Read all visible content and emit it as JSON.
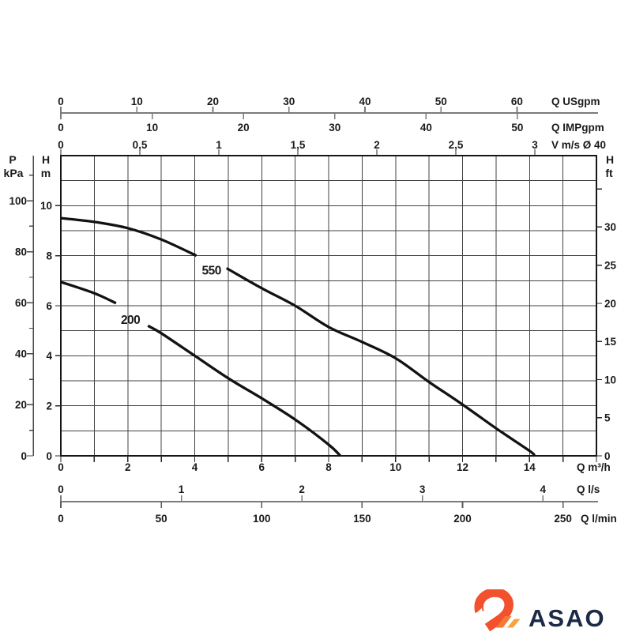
{
  "page": {
    "background": "#ffffff"
  },
  "chart_data": {
    "type": "line",
    "description": "Pump head-flow performance curves",
    "x_axis_base": {
      "unit": "m3/h",
      "range": [
        0,
        16
      ],
      "grid_step": 1
    },
    "y_axis_base": {
      "unit": "m",
      "range": [
        0,
        12
      ],
      "grid_step": 1
    },
    "grid": true,
    "axes_top": [
      {
        "name": "q-usgpm",
        "unit_label": "Q USgpm",
        "m3h_per_unit": 0.22712,
        "tick_values": [
          0,
          10,
          20,
          30,
          40,
          50,
          60
        ],
        "tick_labels": [
          "0",
          "10",
          "20",
          "30",
          "40",
          "50",
          "60"
        ]
      },
      {
        "name": "q-impgpm",
        "unit_label": "Q IMPgpm",
        "m3h_per_unit": 0.27277,
        "tick_values": [
          0,
          10,
          20,
          30,
          40,
          50
        ],
        "tick_labels": [
          "0",
          "10",
          "20",
          "30",
          "40",
          "50"
        ]
      },
      {
        "name": "v-ms-d40",
        "unit_label": "V m/s Ø 40",
        "m3h_per_unit": 4.72,
        "tick_values": [
          0,
          0.5,
          1,
          1.5,
          2,
          2.5,
          3
        ],
        "tick_labels": [
          "0",
          "0,5",
          "1",
          "1,5",
          "2",
          "2,5",
          "3"
        ]
      }
    ],
    "axes_bottom": [
      {
        "name": "q-m3h",
        "unit_label": "Q m³/h",
        "m3h_per_unit": 1,
        "tick_values": [
          0,
          1,
          2,
          3,
          4,
          5,
          6,
          7,
          8,
          9,
          10,
          11,
          12,
          13,
          14,
          15,
          16
        ],
        "label_values": [
          0,
          2,
          4,
          6,
          8,
          10,
          12,
          14
        ],
        "tick_labels": [
          "0",
          "2",
          "4",
          "6",
          "8",
          "10",
          "12",
          "14"
        ]
      },
      {
        "name": "q-ls",
        "unit_label": "Q l/s",
        "m3h_per_unit": 3.6,
        "tick_values": [
          0,
          1,
          2,
          3,
          4
        ],
        "tick_labels": [
          "0",
          "1",
          "2",
          "3",
          "4"
        ]
      },
      {
        "name": "q-lmin",
        "unit_label": "Q l/min",
        "m3h_per_unit": 0.06,
        "tick_values": [
          0,
          50,
          100,
          150,
          200,
          250
        ],
        "tick_labels": [
          "0",
          "50",
          "100",
          "150",
          "200",
          "250"
        ]
      }
    ],
    "axis_left_pressure": {
      "name": "p-kpa",
      "header": [
        "P",
        "kPa"
      ],
      "m_per_unit": 0.10197,
      "tick_step": 10,
      "tick_max": 110,
      "label_values": [
        0,
        20,
        40,
        60,
        80,
        100
      ],
      "tick_labels": [
        "0",
        "20",
        "40",
        "60",
        "80",
        "100"
      ]
    },
    "axis_left_head": {
      "name": "h-m",
      "header": [
        "H",
        "m"
      ],
      "label_values": [
        0,
        2,
        4,
        6,
        8,
        10
      ],
      "tick_labels": [
        "0",
        "2",
        "4",
        "6",
        "8",
        "10"
      ]
    },
    "axis_right_head_ft": {
      "name": "h-ft",
      "header": [
        "H",
        "ft"
      ],
      "m_per_unit": 0.3048,
      "tick_step": 5,
      "tick_max": 35,
      "label_values": [
        0,
        5,
        10,
        15,
        20,
        25,
        30
      ],
      "tick_labels": [
        "0",
        "5",
        "10",
        "15",
        "20",
        "25",
        "30"
      ]
    },
    "series": [
      {
        "name": "550",
        "label": "550",
        "label_pos": {
          "q_m3h": 4.5,
          "h_m": 7.42
        },
        "segments": [
          [
            [
              0,
              9.5
            ],
            [
              1,
              9.35
            ],
            [
              2,
              9.1
            ],
            [
              3,
              8.65
            ],
            [
              4.05,
              8.0
            ]
          ],
          [
            [
              4.95,
              7.5
            ],
            [
              6,
              6.7
            ],
            [
              7,
              6.0
            ],
            [
              8,
              5.15
            ],
            [
              9,
              4.55
            ],
            [
              10,
              3.9
            ],
            [
              11,
              2.95
            ],
            [
              12,
              2.05
            ],
            [
              13,
              1.1
            ],
            [
              14,
              0.2
            ],
            [
              14.15,
              0
            ]
          ]
        ]
      },
      {
        "name": "200",
        "label": "200",
        "label_pos": {
          "q_m3h": 2.08,
          "h_m": 5.45
        },
        "segments": [
          [
            [
              0,
              6.95
            ],
            [
              1,
              6.5
            ],
            [
              1.65,
              6.1
            ]
          ],
          [
            [
              2.6,
              5.2
            ],
            [
              3,
              4.9
            ],
            [
              4,
              4.0
            ],
            [
              5,
              3.1
            ],
            [
              6,
              2.3
            ],
            [
              7,
              1.45
            ],
            [
              8,
              0.45
            ],
            [
              8.35,
              0
            ]
          ]
        ]
      }
    ],
    "styles": {
      "curve_color": "#121212",
      "grid_color": "#424242",
      "border_color": "#161616",
      "scale_line_color": "#7b7b7b",
      "tick_color_dark": "#2a2a2a",
      "kpa_axis_color": "#4a4a4a",
      "text_color": "#1a1a1a"
    }
  },
  "logo": {
    "text": "ASAO",
    "text_color": "#1b2a47",
    "icon_colors": {
      "neck": "#f3512e",
      "stripe1": "#f57a33",
      "stripe2": "#f9a13d"
    }
  }
}
